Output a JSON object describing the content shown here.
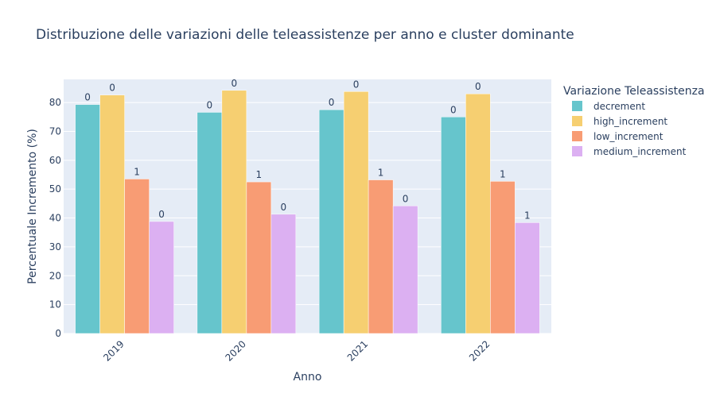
{
  "chart_data": {
    "type": "bar",
    "title": "Distribuzione delle variazioni delle teleassistenze per anno e cluster dominante",
    "xlabel": "Anno",
    "ylabel": "Percentuale Incremento (%)",
    "categories": [
      "2019",
      "2020",
      "2021",
      "2022"
    ],
    "ylim": [
      0,
      88
    ],
    "yticks": [
      0,
      10,
      20,
      30,
      40,
      50,
      60,
      70,
      80
    ],
    "grid": true,
    "legend_title": "Variazione Teleassistenza",
    "legend_position": "right",
    "series": [
      {
        "name": "decrement",
        "color": "#66c5cc",
        "values": [
          79.3,
          76.6,
          77.5,
          75.0
        ],
        "labels": [
          "0",
          "0",
          "0",
          "0"
        ]
      },
      {
        "name": "high_increment",
        "color": "#f6cf71",
        "values": [
          82.6,
          84.2,
          83.8,
          83.0
        ],
        "labels": [
          "0",
          "0",
          "0",
          "0"
        ]
      },
      {
        "name": "low_increment",
        "color": "#f89c74",
        "values": [
          53.5,
          52.5,
          53.2,
          52.7
        ],
        "labels": [
          "1",
          "1",
          "1",
          "1"
        ]
      },
      {
        "name": "medium_increment",
        "color": "#dcb0f2",
        "values": [
          38.8,
          41.3,
          44.2,
          38.4
        ],
        "labels": [
          "0",
          "0",
          "0",
          "1"
        ]
      }
    ]
  }
}
